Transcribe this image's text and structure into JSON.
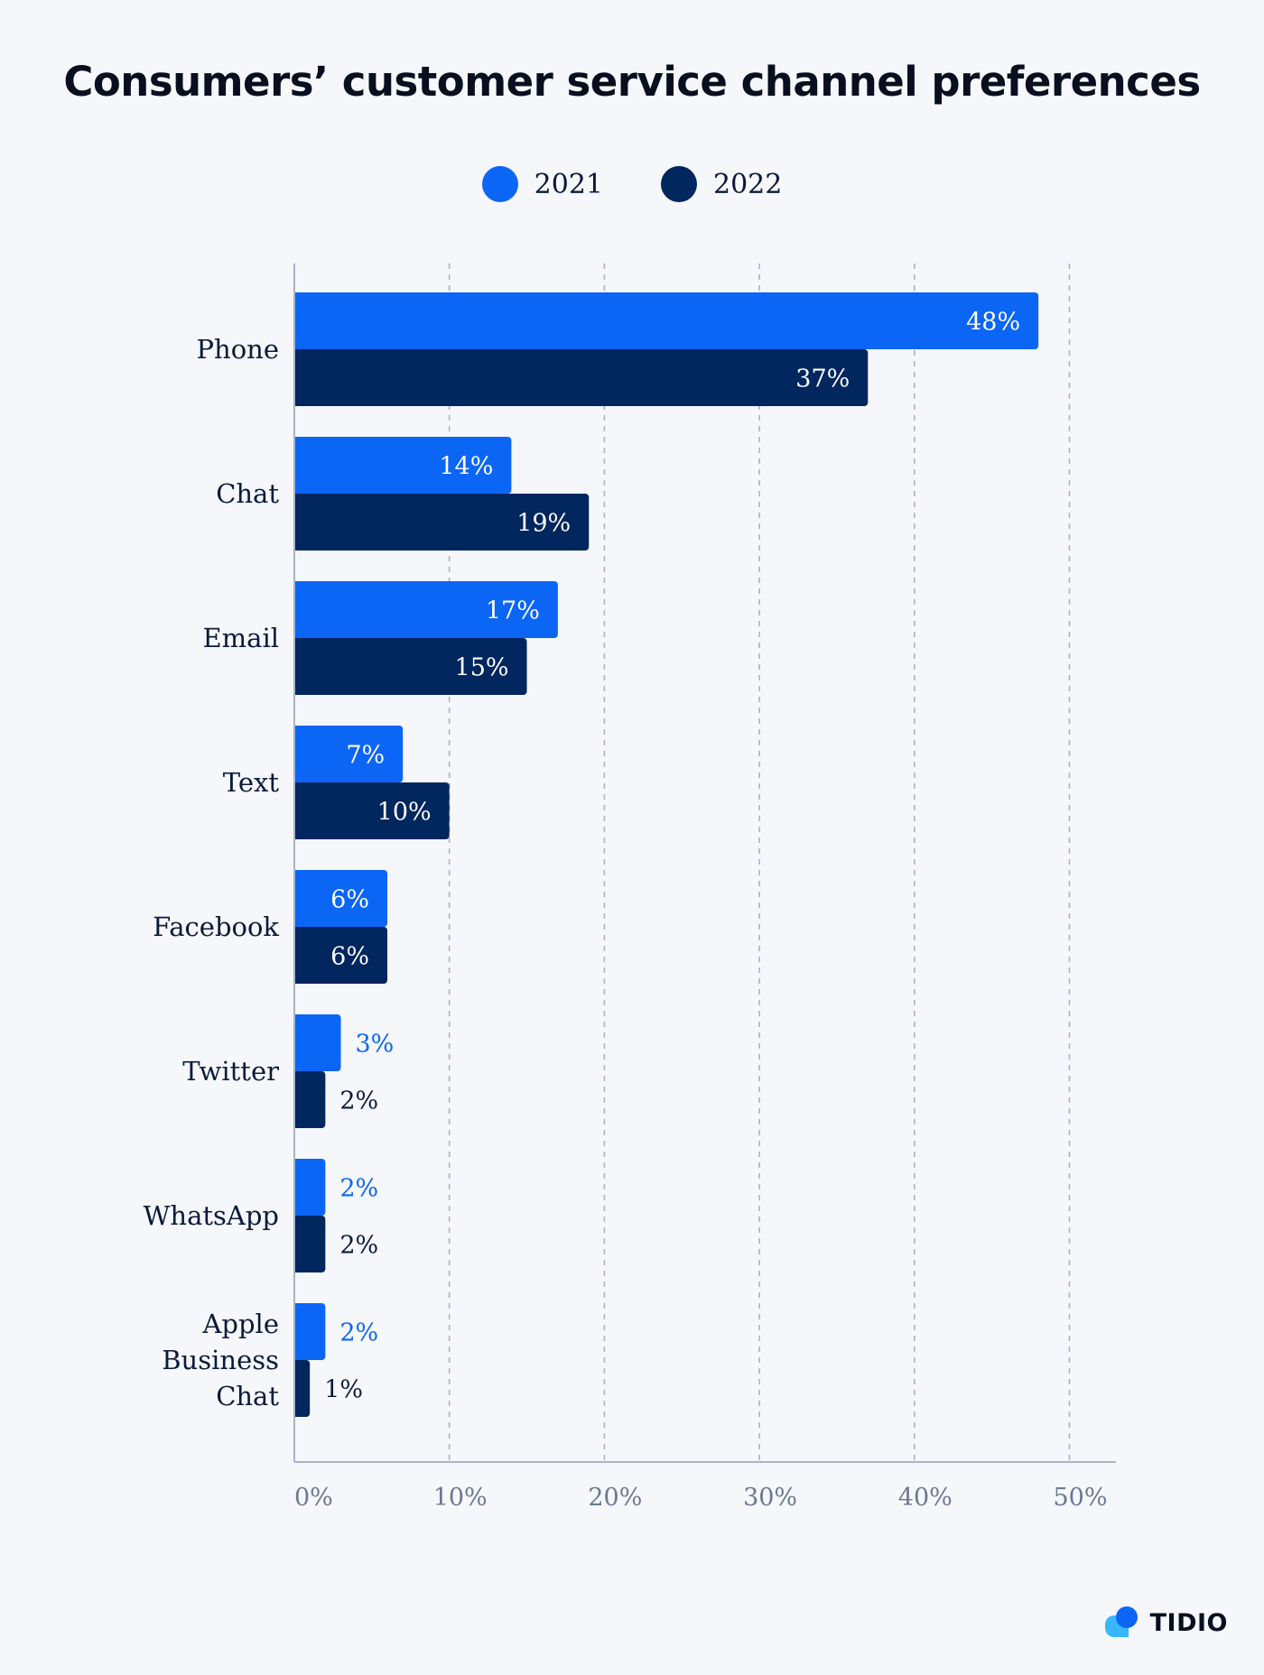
{
  "title": "Consumers’ customer service channel preferences",
  "brand": {
    "name": "TIDIO",
    "logo_icon": "chat-bubbles-logo-icon"
  },
  "colors": {
    "series_2021": "#0b66f5",
    "series_2022": "#02265e",
    "label_outside_2021": "#0b66f5",
    "label_outside_2022": "#0b1a3a",
    "grid": "#a9b3c8",
    "axis": "#a9b3c8",
    "tick_text": "#6b7890",
    "category_text": "#0b1a3a"
  },
  "legend": {
    "placement": "top-center",
    "items": [
      {
        "label": "2021",
        "color": "#0b66f5"
      },
      {
        "label": "2022",
        "color": "#02265e"
      }
    ]
  },
  "chart_data": {
    "type": "bar",
    "orientation": "horizontal",
    "categories": [
      "Phone",
      "Chat",
      "Email",
      "Text",
      "Facebook",
      "Twitter",
      "WhatsApp",
      "Apple Business Chat"
    ],
    "category_lines": [
      [
        "Phone"
      ],
      [
        "Chat"
      ],
      [
        "Email"
      ],
      [
        "Text"
      ],
      [
        "Facebook"
      ],
      [
        "Twitter"
      ],
      [
        "WhatsApp"
      ],
      [
        "Apple",
        "Business",
        "Chat"
      ]
    ],
    "series": [
      {
        "name": "2021",
        "values": [
          48,
          14,
          17,
          7,
          6,
          3,
          2,
          2
        ],
        "labels": [
          "48%",
          "14%",
          "17%",
          "7%",
          "6%",
          "3%",
          "2%",
          "2%"
        ]
      },
      {
        "name": "2022",
        "values": [
          37,
          19,
          15,
          10,
          6,
          2,
          2,
          1
        ],
        "labels": [
          "37%",
          "19%",
          "15%",
          "10%",
          "6%",
          "2%",
          "2%",
          "1%"
        ]
      }
    ],
    "title": "Consumers’ customer service channel preferences",
    "xlabel": "",
    "ylabel": "",
    "xlim": [
      0,
      53
    ],
    "ticks": [
      0,
      10,
      20,
      30,
      40,
      50
    ],
    "tick_labels": [
      "0%",
      "10%",
      "20%",
      "30%",
      "40%",
      "50%"
    ],
    "grid": "vertical dashed",
    "legend_placement": "top-center"
  }
}
